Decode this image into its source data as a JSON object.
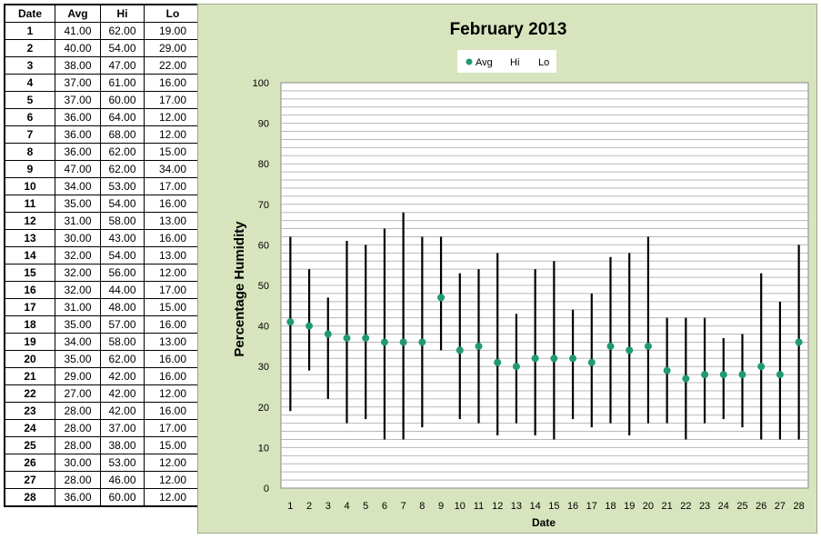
{
  "table": {
    "headers": [
      "Date",
      "Avg",
      "Hi",
      "Lo"
    ],
    "rows": [
      [
        "1",
        "41.00",
        "62.00",
        "19.00"
      ],
      [
        "2",
        "40.00",
        "54.00",
        "29.00"
      ],
      [
        "3",
        "38.00",
        "47.00",
        "22.00"
      ],
      [
        "4",
        "37.00",
        "61.00",
        "16.00"
      ],
      [
        "5",
        "37.00",
        "60.00",
        "17.00"
      ],
      [
        "6",
        "36.00",
        "64.00",
        "12.00"
      ],
      [
        "7",
        "36.00",
        "68.00",
        "12.00"
      ],
      [
        "8",
        "36.00",
        "62.00",
        "15.00"
      ],
      [
        "9",
        "47.00",
        "62.00",
        "34.00"
      ],
      [
        "10",
        "34.00",
        "53.00",
        "17.00"
      ],
      [
        "11",
        "35.00",
        "54.00",
        "16.00"
      ],
      [
        "12",
        "31.00",
        "58.00",
        "13.00"
      ],
      [
        "13",
        "30.00",
        "43.00",
        "16.00"
      ],
      [
        "14",
        "32.00",
        "54.00",
        "13.00"
      ],
      [
        "15",
        "32.00",
        "56.00",
        "12.00"
      ],
      [
        "16",
        "32.00",
        "44.00",
        "17.00"
      ],
      [
        "17",
        "31.00",
        "48.00",
        "15.00"
      ],
      [
        "18",
        "35.00",
        "57.00",
        "16.00"
      ],
      [
        "19",
        "34.00",
        "58.00",
        "13.00"
      ],
      [
        "20",
        "35.00",
        "62.00",
        "16.00"
      ],
      [
        "21",
        "29.00",
        "42.00",
        "16.00"
      ],
      [
        "22",
        "27.00",
        "42.00",
        "12.00"
      ],
      [
        "23",
        "28.00",
        "42.00",
        "16.00"
      ],
      [
        "24",
        "28.00",
        "37.00",
        "17.00"
      ],
      [
        "25",
        "28.00",
        "38.00",
        "15.00"
      ],
      [
        "26",
        "30.00",
        "53.00",
        "12.00"
      ],
      [
        "27",
        "28.00",
        "46.00",
        "12.00"
      ],
      [
        "28",
        "36.00",
        "60.00",
        "12.00"
      ]
    ]
  },
  "chart_data": {
    "type": "scatter",
    "title": "February 2013",
    "xlabel": "Date",
    "ylabel": "Percentage Humidity",
    "x": [
      1,
      2,
      3,
      4,
      5,
      6,
      7,
      8,
      9,
      10,
      11,
      12,
      13,
      14,
      15,
      16,
      17,
      18,
      19,
      20,
      21,
      22,
      23,
      24,
      25,
      26,
      27,
      28
    ],
    "series": [
      {
        "name": "Avg",
        "values": [
          41,
          40,
          38,
          37,
          37,
          36,
          36,
          36,
          47,
          34,
          35,
          31,
          30,
          32,
          32,
          32,
          31,
          35,
          34,
          35,
          29,
          27,
          28,
          28,
          28,
          30,
          28,
          36
        ]
      },
      {
        "name": "Hi",
        "values": [
          62,
          54,
          47,
          61,
          60,
          64,
          68,
          62,
          62,
          53,
          54,
          58,
          43,
          54,
          56,
          44,
          48,
          57,
          58,
          62,
          42,
          42,
          42,
          37,
          38,
          53,
          46,
          60
        ]
      },
      {
        "name": "Lo",
        "values": [
          19,
          29,
          22,
          16,
          17,
          12,
          12,
          15,
          34,
          17,
          16,
          13,
          16,
          13,
          12,
          17,
          15,
          16,
          13,
          16,
          16,
          12,
          16,
          17,
          15,
          12,
          12,
          12
        ]
      }
    ],
    "ylim": [
      0,
      100
    ],
    "yticks": [
      0,
      10,
      20,
      30,
      40,
      50,
      60,
      70,
      80,
      90,
      100
    ],
    "grid": true,
    "legend": "top-center",
    "colors": {
      "avg_marker": "#1f9a74",
      "hilo_line": "#000000",
      "plot_bg": "#ffffff",
      "chart_bg": "#d7e4bd"
    }
  }
}
